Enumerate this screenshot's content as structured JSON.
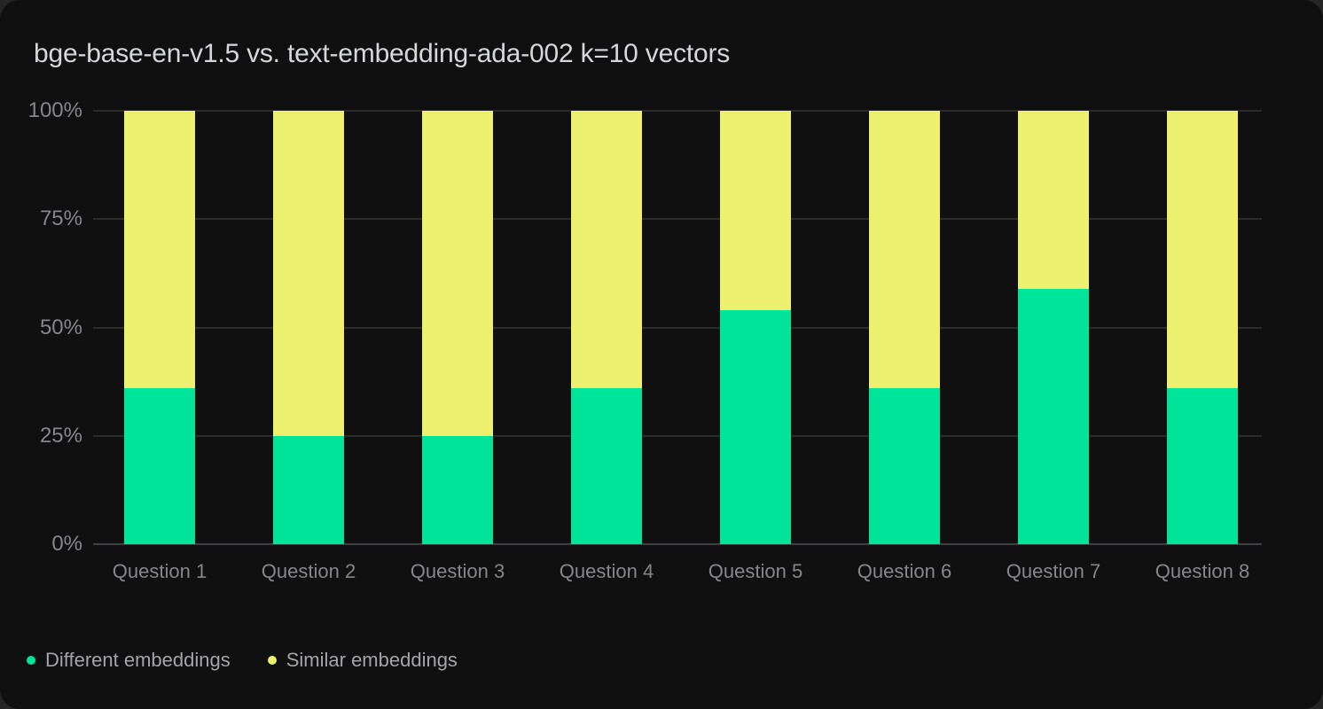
{
  "title": "bge-base-en-v1.5 vs. text-embedding-ada-002 k=10 vectors",
  "colors": {
    "page_background": "#262626",
    "card_background": "#0f100f",
    "different_green": "#00e49a",
    "similar_yellow": "#edf06e",
    "title_text": "#d7d7db",
    "axis_text": "#86868c",
    "legend_text": "#a4a4aa",
    "gridline": "#2b2c2b",
    "baseline": "#404144"
  },
  "chart_data": {
    "type": "bar",
    "stacked": true,
    "unit": "percent",
    "title": "bge-base-en-v1.5 vs. text-embedding-ada-002 k=10 vectors",
    "categories": [
      "Question 1",
      "Question 2",
      "Question 3",
      "Question 4",
      "Question 5",
      "Question 6",
      "Question 7",
      "Question 8"
    ],
    "series": [
      {
        "name": "Different embeddings",
        "color": "#00e49a",
        "values": [
          36,
          25,
          25,
          36,
          54,
          36,
          59,
          36
        ]
      },
      {
        "name": "Similar embeddings",
        "color": "#edf06e",
        "values": [
          64,
          75,
          75,
          64,
          46,
          64,
          41,
          64
        ]
      }
    ],
    "xlabel": "",
    "ylabel": "",
    "ylim": [
      0,
      100
    ],
    "y_ticks": [
      0,
      25,
      50,
      75,
      100
    ],
    "y_tick_labels": [
      "0%",
      "25%",
      "50%",
      "75%",
      "100%"
    ],
    "grid": "horizontal",
    "legend_position": "bottom-left"
  }
}
